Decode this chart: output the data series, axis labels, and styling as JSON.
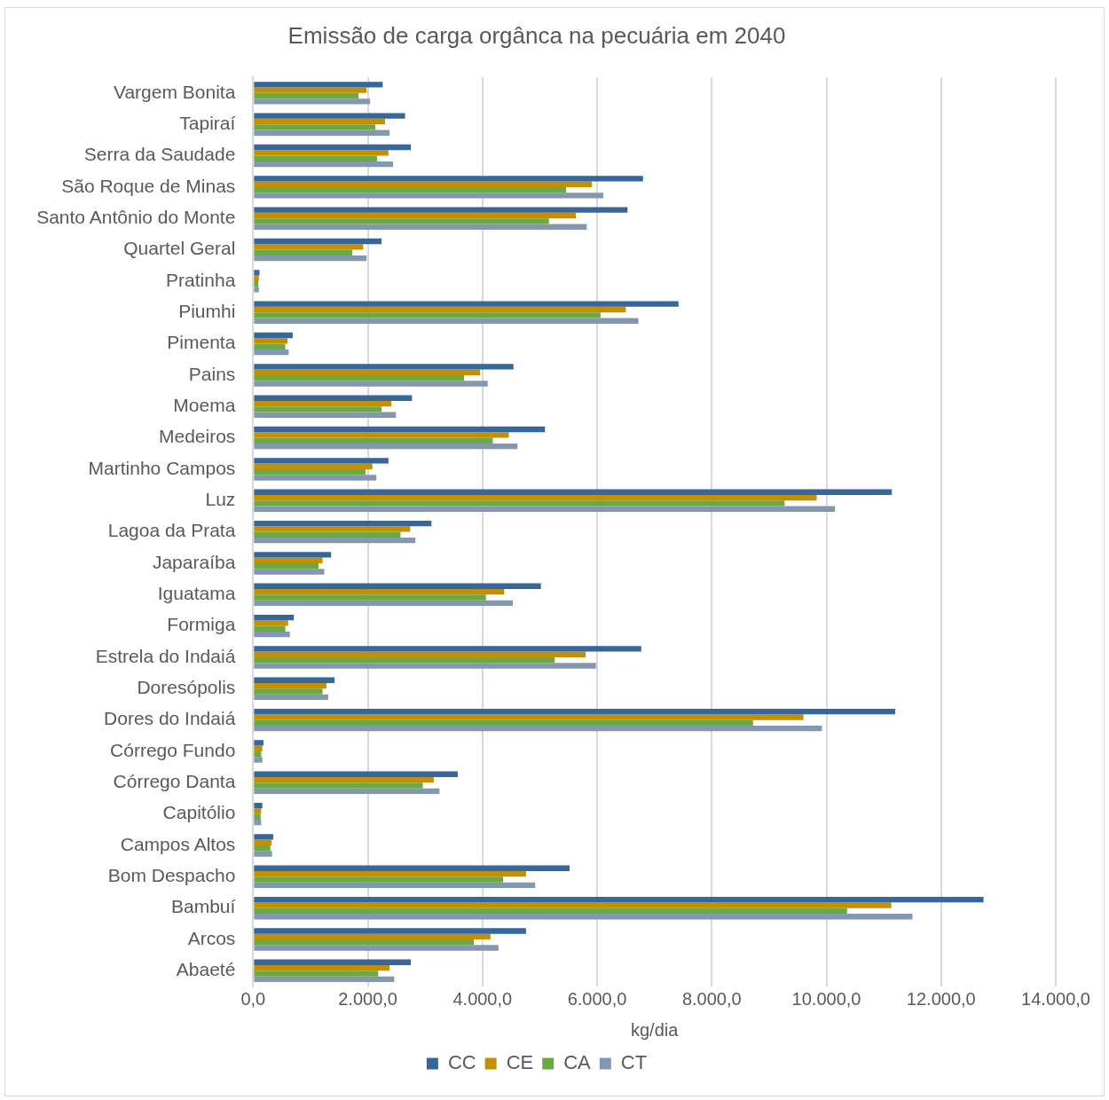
{
  "chart_data": {
    "type": "bar",
    "orientation": "horizontal",
    "title": "Emissão de carga orgânca na pecuária em 2040",
    "xlabel": "kg/dia",
    "categories": [
      "Vargem Bonita",
      "Tapiraí",
      "Serra da Saudade",
      "São Roque de Minas",
      "Santo Antônio do Monte",
      "Quartel Geral",
      "Pratinha",
      "Piumhi",
      "Pimenta",
      "Pains",
      "Moema",
      "Medeiros",
      "Martinho Campos",
      "Luz",
      "Lagoa da Prata",
      "Japaraíba",
      "Iguatama",
      "Formiga",
      "Estrela do Indaiá",
      "Doresópolis",
      "Dores do Indaiá",
      "Córrego Fundo",
      "Córrego Danta",
      "Capitólio",
      "Campos Altos",
      "Bom Despacho",
      "Bambuí",
      "Arcos",
      "Abaeté"
    ],
    "series": [
      {
        "name": "CC",
        "color": "#35679a",
        "values": [
          2260,
          2650,
          2750,
          6800,
          6530,
          2240,
          110,
          7420,
          690,
          4540,
          2770,
          5090,
          2360,
          11140,
          3110,
          1360,
          5020,
          710,
          6770,
          1420,
          11200,
          180,
          3570,
          160,
          350,
          5520,
          12740,
          4760,
          2750
        ]
      },
      {
        "name": "CE",
        "color": "#c49000",
        "values": [
          1980,
          2300,
          2360,
          5910,
          5630,
          1920,
          100,
          6500,
          600,
          3960,
          2410,
          4460,
          2080,
          9830,
          2740,
          1210,
          4380,
          610,
          5800,
          1280,
          9600,
          160,
          3150,
          140,
          320,
          4760,
          11130,
          4140,
          2380
        ]
      },
      {
        "name": "CA",
        "color": "#6aaa45",
        "values": [
          1840,
          2130,
          2160,
          5460,
          5160,
          1730,
          90,
          6060,
          560,
          3680,
          2240,
          4180,
          1960,
          9270,
          2570,
          1140,
          4060,
          560,
          5260,
          1210,
          8720,
          140,
          2960,
          130,
          300,
          4360,
          10360,
          3850,
          2180
        ]
      },
      {
        "name": "CT",
        "color": "#8497b0",
        "values": [
          2040,
          2380,
          2440,
          6110,
          5820,
          1980,
          100,
          6720,
          620,
          4090,
          2490,
          4610,
          2150,
          10150,
          2830,
          1240,
          4530,
          640,
          5980,
          1310,
          9920,
          160,
          3250,
          140,
          330,
          4920,
          11500,
          4280,
          2460
        ]
      }
    ],
    "xlim": [
      0,
      14000
    ],
    "xticks": [
      {
        "value": 0,
        "label": "0,0"
      },
      {
        "value": 2000,
        "label": "2.000,0"
      },
      {
        "value": 4000,
        "label": "4.000,0"
      },
      {
        "value": 6000,
        "label": "6.000,0"
      },
      {
        "value": 8000,
        "label": "8.000,0"
      },
      {
        "value": 10000,
        "label": "10.000,0"
      },
      {
        "value": 12000,
        "label": "12.000,0"
      },
      {
        "value": 14000,
        "label": "14.000,0"
      }
    ],
    "grid": "x",
    "legend": "bottom"
  }
}
